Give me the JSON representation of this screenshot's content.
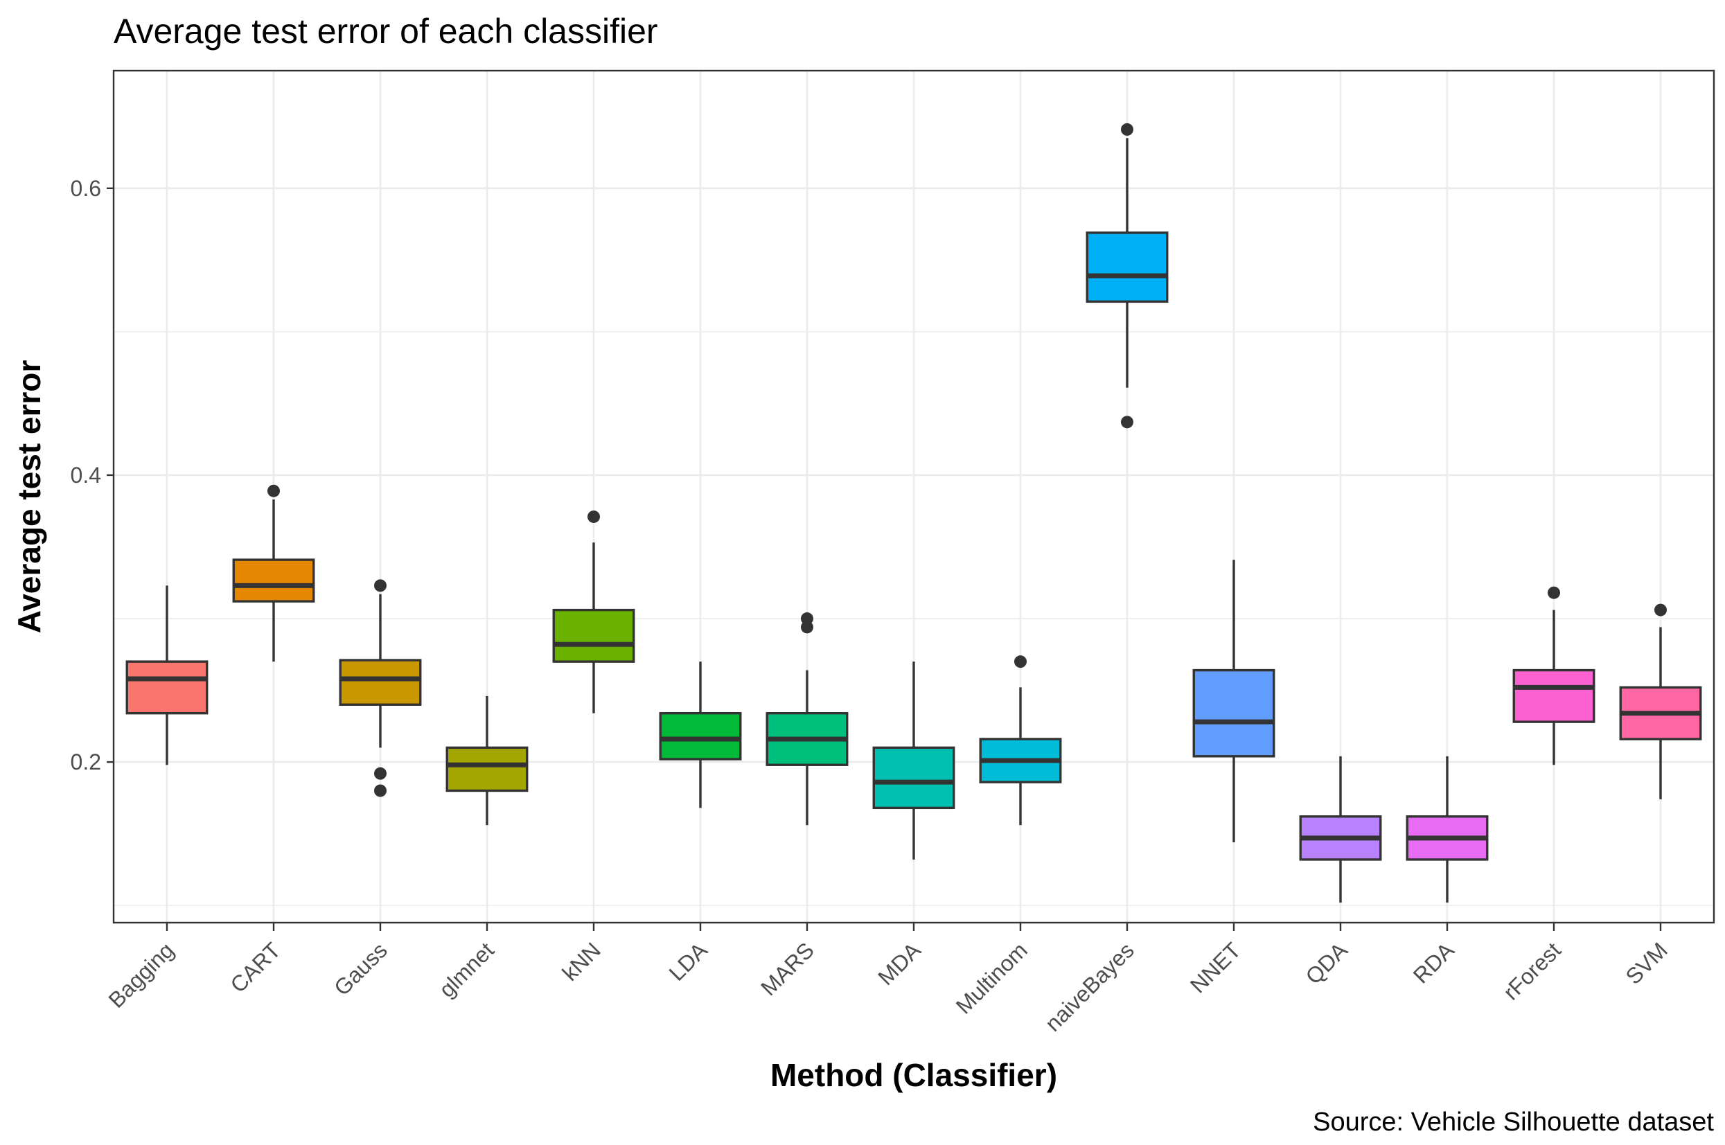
{
  "chart_data": {
    "type": "boxplot",
    "title": "Average test error of each classifier",
    "caption": "Source: Vehicle Silhouette dataset",
    "xlabel": "Method (Classifier)",
    "ylabel": "Average test error",
    "ylim": [
      0.088,
      0.682
    ],
    "y_ticks": [
      0.2,
      0.4,
      0.6
    ],
    "y_tick_labels": [
      "0.2",
      "0.4",
      "0.6"
    ],
    "y_minor_ticks": [
      0.1,
      0.3,
      0.5
    ],
    "grid": true,
    "legend": "none",
    "categories": [
      "Bagging",
      "CART",
      "Gauss",
      "glmnet",
      "kNN",
      "LDA",
      "MARS",
      "MDA",
      "Multinom",
      "naiveBayes",
      "NNET",
      "QDA",
      "RDA",
      "rForest",
      "SVM"
    ],
    "boxes": [
      {
        "name": "Bagging",
        "color": "#F8766D",
        "whisker_low": 0.198,
        "q1": 0.234,
        "median": 0.258,
        "q3": 0.27,
        "whisker_high": 0.323,
        "outliers": []
      },
      {
        "name": "CART",
        "color": "#E58700",
        "whisker_low": 0.27,
        "q1": 0.312,
        "median": 0.323,
        "q3": 0.341,
        "whisker_high": 0.383,
        "outliers": [
          0.389
        ]
      },
      {
        "name": "Gauss",
        "color": "#C99800",
        "whisker_low": 0.21,
        "q1": 0.24,
        "median": 0.258,
        "q3": 0.271,
        "whisker_high": 0.317,
        "outliers": [
          0.323,
          0.192,
          0.18
        ]
      },
      {
        "name": "glmnet",
        "color": "#A3A500",
        "whisker_low": 0.156,
        "q1": 0.18,
        "median": 0.198,
        "q3": 0.21,
        "whisker_high": 0.246,
        "outliers": []
      },
      {
        "name": "kNN",
        "color": "#6BB100",
        "whisker_low": 0.234,
        "q1": 0.27,
        "median": 0.282,
        "q3": 0.306,
        "whisker_high": 0.353,
        "outliers": [
          0.371
        ]
      },
      {
        "name": "LDA",
        "color": "#00BA38",
        "whisker_low": 0.168,
        "q1": 0.202,
        "median": 0.216,
        "q3": 0.234,
        "whisker_high": 0.27,
        "outliers": []
      },
      {
        "name": "MARS",
        "color": "#00BF7D",
        "whisker_low": 0.156,
        "q1": 0.198,
        "median": 0.216,
        "q3": 0.234,
        "whisker_high": 0.264,
        "outliers": [
          0.3,
          0.294
        ]
      },
      {
        "name": "MDA",
        "color": "#00C0AF",
        "whisker_low": 0.132,
        "q1": 0.168,
        "median": 0.186,
        "q3": 0.21,
        "whisker_high": 0.27,
        "outliers": []
      },
      {
        "name": "Multinom",
        "color": "#00BCD8",
        "whisker_low": 0.156,
        "q1": 0.186,
        "median": 0.201,
        "q3": 0.216,
        "whisker_high": 0.252,
        "outliers": [
          0.27
        ]
      },
      {
        "name": "naiveBayes",
        "color": "#00B0F6",
        "whisker_low": 0.461,
        "q1": 0.521,
        "median": 0.539,
        "q3": 0.569,
        "whisker_high": 0.635,
        "outliers": [
          0.641,
          0.437
        ]
      },
      {
        "name": "NNET",
        "color": "#619CFF",
        "whisker_low": 0.144,
        "q1": 0.204,
        "median": 0.228,
        "q3": 0.264,
        "whisker_high": 0.341,
        "outliers": []
      },
      {
        "name": "QDA",
        "color": "#B983FF",
        "whisker_low": 0.102,
        "q1": 0.132,
        "median": 0.147,
        "q3": 0.162,
        "whisker_high": 0.204,
        "outliers": []
      },
      {
        "name": "RDA",
        "color": "#E76BF3",
        "whisker_low": 0.102,
        "q1": 0.132,
        "median": 0.147,
        "q3": 0.162,
        "whisker_high": 0.204,
        "outliers": []
      },
      {
        "name": "rForest",
        "color": "#FD61D1",
        "whisker_low": 0.198,
        "q1": 0.228,
        "median": 0.252,
        "q3": 0.264,
        "whisker_high": 0.306,
        "outliers": [
          0.318
        ]
      },
      {
        "name": "SVM",
        "color": "#FF67A4",
        "whisker_low": 0.174,
        "q1": 0.216,
        "median": 0.234,
        "q3": 0.252,
        "whisker_high": 0.294,
        "outliers": [
          0.306
        ]
      }
    ]
  }
}
